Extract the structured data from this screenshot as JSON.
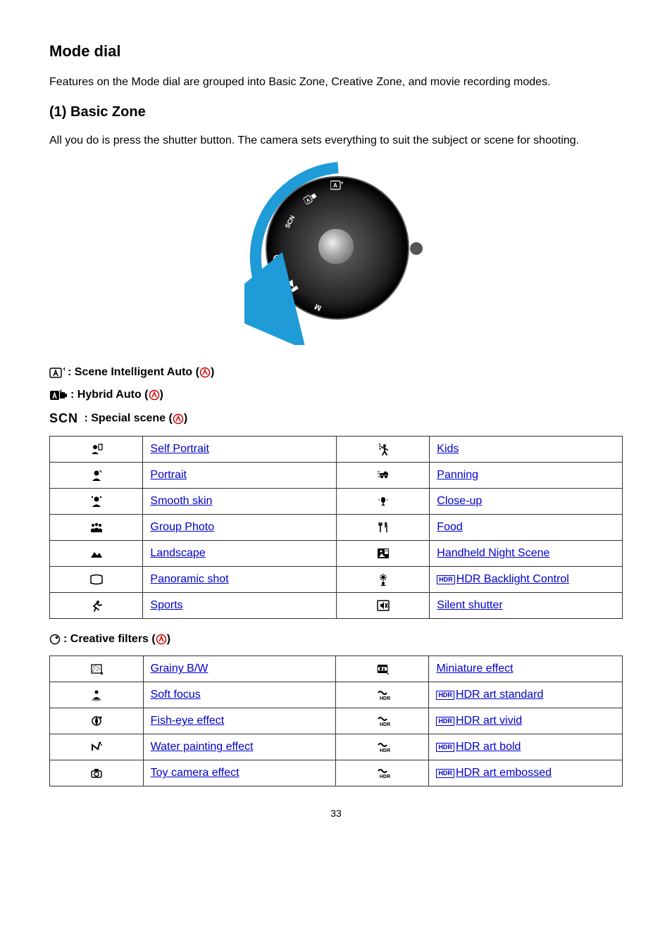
{
  "headings": {
    "h2": "Mode dial",
    "intro": "Features on the Mode dial are grouped into Basic Zone, Creative Zone, and movie recording modes.",
    "h3_basic": "(1) Basic Zone",
    "basic_intro": "All you do is press the shutter button. The camera sets everything to suit the subject or scene for shooting."
  },
  "dial": {
    "arrow_color": "#1f9bd8",
    "labels": [
      "A+",
      "SCN"
    ]
  },
  "mode_lines": {
    "scene_auto": ": Scene Intelligent Auto (",
    "hybrid": ": Hybrid Auto (",
    "special": " : Special scene (",
    "creative": ": Creative filters (",
    "close": ")"
  },
  "scn_text": "SCN",
  "special_table": {
    "rows": [
      {
        "l_label": "Self Portrait",
        "r_label": "Kids",
        "l_icon": "self-portrait",
        "r_icon": "kids"
      },
      {
        "l_label": "Portrait",
        "r_label": "Panning",
        "l_icon": "portrait",
        "r_icon": "panning"
      },
      {
        "l_label": "Smooth skin",
        "r_label": "Close-up",
        "l_icon": "smooth-skin",
        "r_icon": "close-up"
      },
      {
        "l_label": "Group Photo",
        "r_label": "Food",
        "l_icon": "group",
        "r_icon": "food"
      },
      {
        "l_label": "Landscape",
        "r_label": "Handheld Night Scene",
        "l_icon": "landscape",
        "r_icon": "night"
      },
      {
        "l_label": "Panoramic shot",
        "r_label": "HDR Backlight Control",
        "l_icon": "panorama",
        "r_icon": "hdr-backlight",
        "r_hdr": true
      },
      {
        "l_label": "Sports",
        "r_label": "Silent shutter",
        "l_icon": "sports",
        "r_icon": "silent"
      }
    ]
  },
  "creative_table": {
    "rows": [
      {
        "l_label": "Grainy B/W",
        "r_label": "Miniature effect",
        "l_icon": "grainy",
        "r_icon": "miniature"
      },
      {
        "l_label": "Soft focus",
        "r_label": "HDR art standard",
        "l_icon": "soft",
        "r_icon": "hdr-std",
        "r_hdr": true
      },
      {
        "l_label": "Fish-eye effect",
        "r_label": "HDR art vivid",
        "l_icon": "fisheye",
        "r_icon": "hdr-vivid",
        "r_hdr": true
      },
      {
        "l_label": "Water painting effect",
        "r_label": "HDR art bold",
        "l_icon": "water",
        "r_icon": "hdr-bold",
        "r_hdr": true
      },
      {
        "l_label": "Toy camera effect",
        "r_label": "HDR art embossed",
        "l_icon": "toy",
        "r_icon": "hdr-emb",
        "r_hdr": true
      }
    ]
  },
  "colors": {
    "link": "#0000cc",
    "link_icon": "#cc0000",
    "border": "#333333"
  },
  "page_number": "33"
}
